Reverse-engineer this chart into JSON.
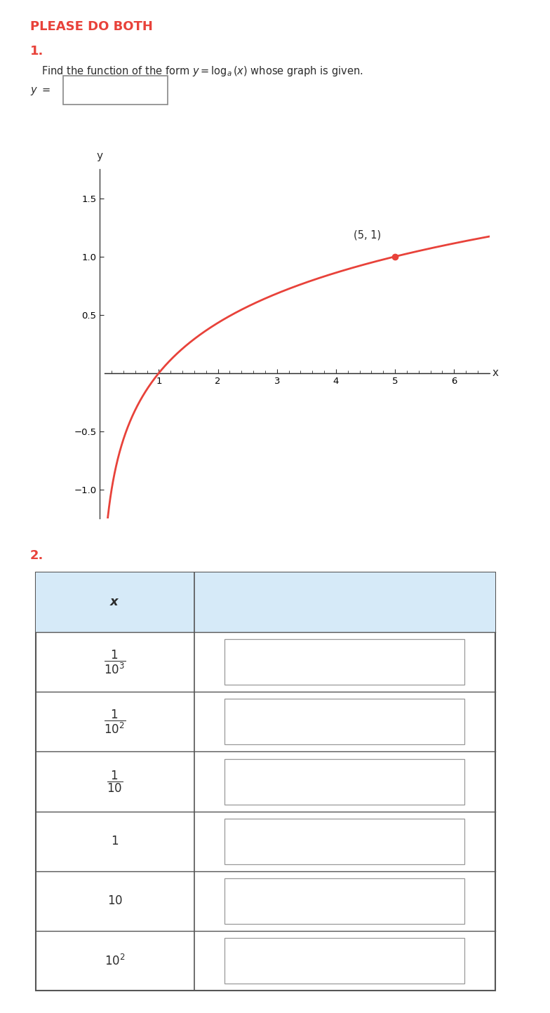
{
  "title": "PLEASE DO BOTH",
  "title_color": "#e8423a",
  "section1_label": "1.",
  "section1_label_color": "#e8423a",
  "section1_text": "Find the function of the form $y = \\log_a(x)$ whose graph is given.",
  "graph_xlim": [
    0.08,
    6.6
  ],
  "graph_ylim": [
    -1.25,
    1.75
  ],
  "graph_xticks": [
    1,
    2,
    3,
    4,
    5,
    6
  ],
  "graph_yticks": [
    -1.0,
    -0.5,
    0.5,
    1.0,
    1.5
  ],
  "graph_xlabel": "x",
  "graph_ylabel": "y",
  "graph_curve_color": "#e8423a",
  "graph_point": [
    5,
    1
  ],
  "graph_point_label": "(5, 1)",
  "section2_label": "2.",
  "section2_label_color": "#e8423a",
  "table_header_bg": "#d6eaf8",
  "table_header_color": "#2c2c2c",
  "table_header_red": "#e8423a",
  "table_border_color": "#555555",
  "input_box_color": "#ffffff",
  "input_box_border": "#999999",
  "row_labels": [
    "$\\dfrac{1}{10^3}$",
    "$\\dfrac{1}{10^2}$",
    "$\\dfrac{1}{10}$",
    "$1$",
    "$10$",
    "$10^2$"
  ]
}
